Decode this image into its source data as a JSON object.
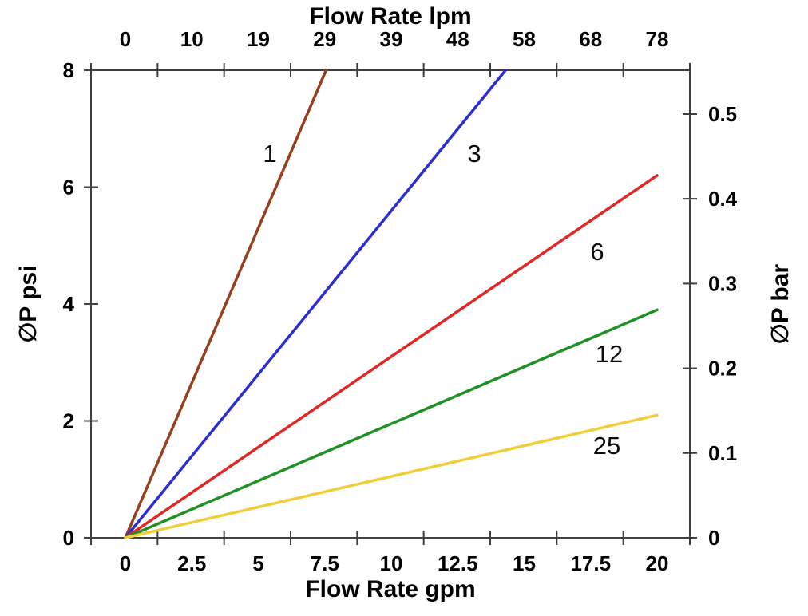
{
  "chart_data": {
    "type": "line",
    "description": "Pressure drop versus flow rate curves for five elements, straight lines radiating from the origin",
    "x_axis_top": {
      "title": "Flow Rate lpm",
      "tick_labels": [
        "0",
        "10",
        "19",
        "29",
        "39",
        "48",
        "58",
        "68",
        "78"
      ]
    },
    "x_axis_bottom": {
      "title": "Flow Rate gpm",
      "tick_labels": [
        "0",
        "2.5",
        "5",
        "7.5",
        "10",
        "12.5",
        "15",
        "17.5",
        "20"
      ],
      "tick_values": [
        0,
        2.5,
        5,
        7.5,
        10,
        12.5,
        15,
        17.5,
        20
      ],
      "range_gpm": [
        -1.3,
        21.2
      ],
      "ticks_offset_half_interval": true
    },
    "y_axis_left": {
      "title": "∅P psi",
      "tick_labels": [
        "0",
        "2",
        "4",
        "6",
        "8"
      ],
      "tick_values": [
        0,
        2,
        4,
        6,
        8
      ],
      "range_psi": [
        0,
        8
      ]
    },
    "y_axis_right": {
      "title": "∅P bar",
      "tick_labels": [
        "0",
        "0.1",
        "0.2",
        "0.3",
        "0.4",
        "0.5"
      ],
      "tick_values": [
        0,
        0.1,
        0.2,
        0.3,
        0.4,
        0.5
      ],
      "psi_per_bar": 14.5
    },
    "grid": false,
    "legend": "inline numeric labels beside each line",
    "series": [
      {
        "name": "1",
        "color": "#96401E",
        "points_gpm_psi": [
          [
            0,
            0
          ],
          [
            7.55,
            8
          ]
        ]
      },
      {
        "name": "3",
        "color": "#2C2FD0",
        "points_gpm_psi": [
          [
            0,
            0
          ],
          [
            14.3,
            8
          ]
        ]
      },
      {
        "name": "6",
        "color": "#DE2926",
        "points_gpm_psi": [
          [
            0,
            0
          ],
          [
            20,
            6.2
          ]
        ]
      },
      {
        "name": "12",
        "color": "#1F9022",
        "points_gpm_psi": [
          [
            0,
            0
          ],
          [
            20,
            3.9
          ]
        ]
      },
      {
        "name": "25",
        "color": "#F0CE3B",
        "points_gpm_psi": [
          [
            0,
            0
          ],
          [
            20,
            2.1
          ]
        ]
      }
    ],
    "axis_color": "#3f3f3f",
    "text_color": "#000000"
  }
}
